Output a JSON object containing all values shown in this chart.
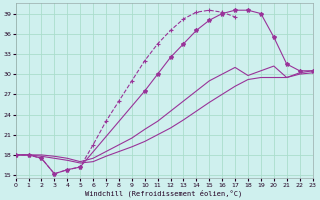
{
  "background_color": "#cff0ee",
  "grid_color": "#aaddcc",
  "line_color": "#993399",
  "xlabel": "Windchill (Refroidissement éolien,°C)",
  "xlim": [
    0,
    23
  ],
  "ylim": [
    14.5,
    40.5
  ],
  "yticks": [
    15,
    18,
    21,
    24,
    27,
    30,
    33,
    36,
    39
  ],
  "xticks": [
    0,
    1,
    2,
    3,
    4,
    5,
    6,
    7,
    8,
    9,
    10,
    11,
    12,
    13,
    14,
    15,
    16,
    17,
    18,
    19,
    20,
    21,
    22,
    23
  ],
  "curve_main_x": [
    0,
    1,
    2,
    3,
    4,
    5,
    6,
    7,
    8,
    9,
    10,
    11,
    12,
    13,
    14,
    15,
    16,
    17
  ],
  "curve_main_y": [
    18,
    18,
    17.5,
    15.2,
    15.8,
    16.2,
    19.5,
    23.0,
    26.0,
    29.0,
    32.0,
    34.5,
    36.5,
    38.2,
    39.2,
    39.5,
    39.2,
    38.5
  ],
  "curve_arch_x": [
    0,
    1,
    2,
    3,
    4,
    5,
    10,
    11,
    12,
    13,
    14,
    15,
    16,
    17,
    18,
    19,
    20,
    21,
    22,
    23
  ],
  "curve_arch_y": [
    18,
    18,
    17.5,
    15.2,
    15.8,
    16.2,
    27.5,
    30.0,
    32.5,
    34.5,
    36.5,
    38.0,
    39.0,
    39.5,
    39.5,
    39.0,
    35.5,
    31.5,
    30.5,
    30.5
  ],
  "curve_mid_x": [
    0,
    1,
    2,
    3,
    4,
    5,
    6,
    7,
    8,
    9,
    10,
    11,
    12,
    13,
    14,
    15,
    16,
    17,
    18,
    19,
    20,
    21,
    22,
    23
  ],
  "curve_mid_y": [
    18,
    18,
    18,
    17.8,
    17.5,
    17.0,
    17.5,
    18.5,
    19.5,
    20.5,
    21.8,
    23.0,
    24.5,
    26.0,
    27.5,
    29.0,
    30.0,
    31.0,
    29.8,
    30.5,
    31.2,
    29.5,
    30.2,
    30.5
  ],
  "curve_low_x": [
    0,
    1,
    2,
    3,
    4,
    5,
    6,
    7,
    8,
    9,
    10,
    11,
    12,
    13,
    14,
    15,
    16,
    17,
    18,
    19,
    20,
    21,
    22,
    23
  ],
  "curve_low_y": [
    18,
    18,
    17.8,
    17.5,
    17.2,
    16.8,
    17.0,
    17.8,
    18.5,
    19.2,
    20.0,
    21.0,
    22.0,
    23.2,
    24.5,
    25.8,
    27.0,
    28.2,
    29.2,
    29.5,
    29.5,
    29.5,
    30.0,
    30.2
  ]
}
